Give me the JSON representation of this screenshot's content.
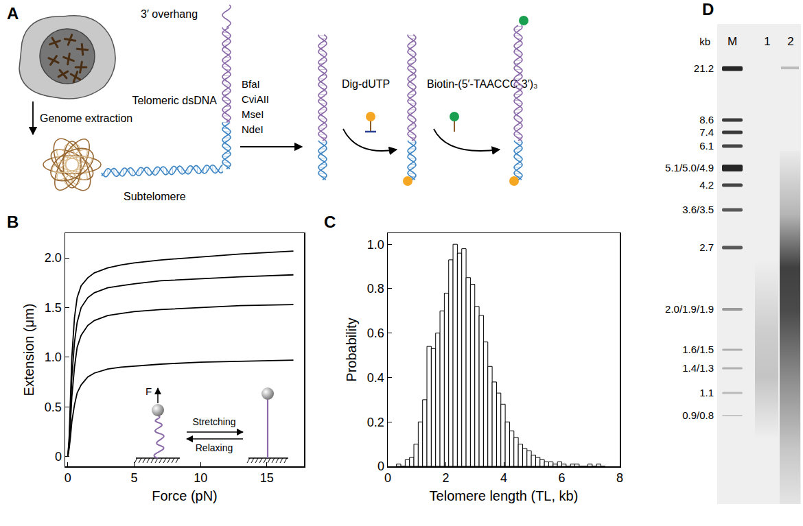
{
  "diagram": {
    "panel": "A",
    "overhang": "3′ overhang",
    "telomere": "Telomeric dsDNA",
    "extraction": "Genome extraction",
    "subtelomere": "Subtelomere",
    "enzymes": [
      "BfaI",
      "CviAII",
      "MseI",
      "NdeI"
    ],
    "label_step1": "Dig-dUTP",
    "label_step2": "Biotin-(5′-TAACCC-3′)₃"
  },
  "chart_data": [
    {
      "panel": "B",
      "type": "line",
      "x_label": "Force (pN)",
      "y_label": "Extension (μm)",
      "x": [
        0,
        0.1,
        0.2,
        0.3,
        0.5,
        0.7,
        1,
        1.5,
        2,
        3,
        4,
        5,
        7,
        10,
        13,
        17
      ],
      "series": [
        {
          "color": "#000000",
          "values": [
            0,
            0.2,
            0.6,
            1.0,
            1.4,
            1.6,
            1.72,
            1.8,
            1.85,
            1.9,
            1.93,
            1.95,
            1.98,
            2.01,
            2.04,
            2.07
          ]
        },
        {
          "color": "#000000",
          "values": [
            0,
            0.15,
            0.45,
            0.8,
            1.15,
            1.35,
            1.5,
            1.6,
            1.65,
            1.7,
            1.72,
            1.74,
            1.77,
            1.79,
            1.81,
            1.83
          ]
        },
        {
          "color": "#000000",
          "values": [
            0,
            0.12,
            0.35,
            0.6,
            0.9,
            1.1,
            1.22,
            1.32,
            1.37,
            1.42,
            1.44,
            1.46,
            1.48,
            1.5,
            1.52,
            1.53
          ]
        },
        {
          "color": "#000000",
          "values": [
            0,
            0.08,
            0.2,
            0.35,
            0.52,
            0.64,
            0.72,
            0.8,
            0.84,
            0.88,
            0.9,
            0.91,
            0.93,
            0.95,
            0.96,
            0.97
          ]
        }
      ],
      "xlim": [
        -0.2,
        17.8
      ],
      "ylim": [
        -0.1,
        2.25
      ],
      "xticks": [
        0,
        5,
        10,
        15
      ],
      "yticks": [
        0,
        0.5,
        {
          "value": 1,
          "label": "1.0"
        },
        1.5,
        {
          "value": 2,
          "label": "2.0"
        }
      ],
      "grid": false,
      "annotations": [
        "F",
        "Stretching",
        "Relaxing"
      ]
    },
    {
      "panel": "C",
      "type": "histogram",
      "x_label": "Telomere length (TL, kb)",
      "y_label": "Probability",
      "bins": [
        0.3,
        0.45,
        0.6,
        0.75,
        0.9,
        1.05,
        1.2,
        1.35,
        1.5,
        1.65,
        1.8,
        1.95,
        2.1,
        2.25,
        2.4,
        2.55,
        2.7,
        2.85,
        3.0,
        3.15,
        3.3,
        3.45,
        3.6,
        3.75,
        3.9,
        4.05,
        4.2,
        4.35,
        4.5,
        4.65,
        4.8,
        4.95,
        5.1,
        5.25,
        5.4,
        5.55,
        5.7,
        5.85,
        6.0,
        6.15,
        6.3,
        6.45,
        6.6,
        6.75,
        6.9,
        7.05,
        7.2,
        7.35,
        7.5
      ],
      "values": [
        0.01,
        0.0,
        0.03,
        0.04,
        0.1,
        0.2,
        0.3,
        0.54,
        0.53,
        0.6,
        0.7,
        0.78,
        0.93,
        1.0,
        0.96,
        0.98,
        0.85,
        0.82,
        0.72,
        0.68,
        0.56,
        0.45,
        0.38,
        0.33,
        0.28,
        0.2,
        0.16,
        0.13,
        0.1,
        0.08,
        0.07,
        0.05,
        0.04,
        0.03,
        0.02,
        0.02,
        0.01,
        0.02,
        0.01,
        0.0,
        0.01,
        0.01,
        0.0,
        0.0,
        0.01,
        0.0,
        0.01,
        0.0
      ],
      "color": "#000000",
      "xlim": [
        0,
        8
      ],
      "ylim": [
        0,
        1.05
      ],
      "xticks": [
        0,
        2,
        4,
        6,
        8
      ],
      "yticks": [
        0,
        0.2,
        0.4,
        0.6,
        0.8,
        {
          "value": 1,
          "label": "1.0"
        }
      ],
      "grid": false
    }
  ],
  "gel": {
    "panel": "D",
    "unit": "kb",
    "lanes": [
      "M",
      "1",
      "2"
    ],
    "marker_sizes": [
      "21.2",
      "8.6",
      "7.4",
      "6.1",
      "5.1/5.0/4.9",
      "4.2",
      "3.6/3.5",
      "2.7",
      "2.0/1.9/1.9",
      "1.6/1.5",
      "1.4/1.3",
      "1.1",
      "0.9/0.8"
    ]
  }
}
